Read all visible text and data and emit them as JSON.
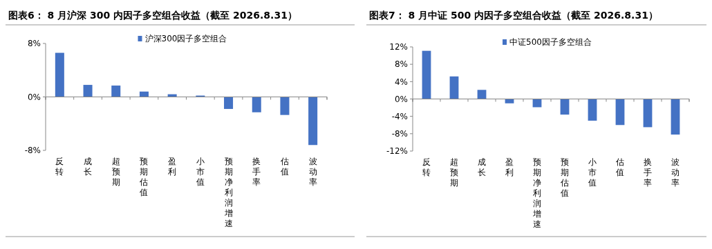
{
  "chart_data": [
    {
      "type": "bar",
      "title": "图表6：  8 月沪深 300 内因子多空组合收益（截至 2026.8.31）",
      "categories": [
        "反转",
        "成长",
        "超预期",
        "预期估值",
        "盈利",
        "小市值",
        "预期净利润增速",
        "换手率",
        "估值",
        "波动率"
      ],
      "series": [
        {
          "name": "沪深300因子多空组合",
          "color": "#4472c4",
          "values": [
            6.6,
            1.8,
            1.7,
            0.8,
            0.4,
            0.2,
            -1.8,
            -2.3,
            -2.7,
            -7.2
          ]
        }
      ],
      "ylim": [
        -8,
        8
      ],
      "yticks": [
        {
          "value": -8,
          "label": "-8%"
        },
        {
          "value": 0,
          "label": "0%"
        },
        {
          "value": 8,
          "label": "8%"
        }
      ],
      "grid": false,
      "legend": "top"
    },
    {
      "type": "bar",
      "title": "图表7：  8 月中证 500 内因子多空组合收益（截至 2026.8.31）",
      "categories": [
        "反转",
        "超预期",
        "成长",
        "盈利",
        "预期净利润增速",
        "预期估值",
        "小市值",
        "估值",
        "换手率",
        "波动率"
      ],
      "series": [
        {
          "name": "中证500因子多空组合",
          "color": "#4472c4",
          "values": [
            11.1,
            5.2,
            2.1,
            -1.0,
            -1.9,
            -3.6,
            -5.0,
            -6.0,
            -6.5,
            -8.2
          ]
        }
      ],
      "ylim": [
        -12,
        12
      ],
      "yticks": [
        {
          "value": -12,
          "label": "-12%"
        },
        {
          "value": -8,
          "label": "-8%"
        },
        {
          "value": -4,
          "label": "-4%"
        },
        {
          "value": 0,
          "label": "0%"
        },
        {
          "value": 4,
          "label": "4%"
        },
        {
          "value": 8,
          "label": "8%"
        },
        {
          "value": 12,
          "label": "12%"
        }
      ],
      "grid": false,
      "legend": "top"
    }
  ]
}
